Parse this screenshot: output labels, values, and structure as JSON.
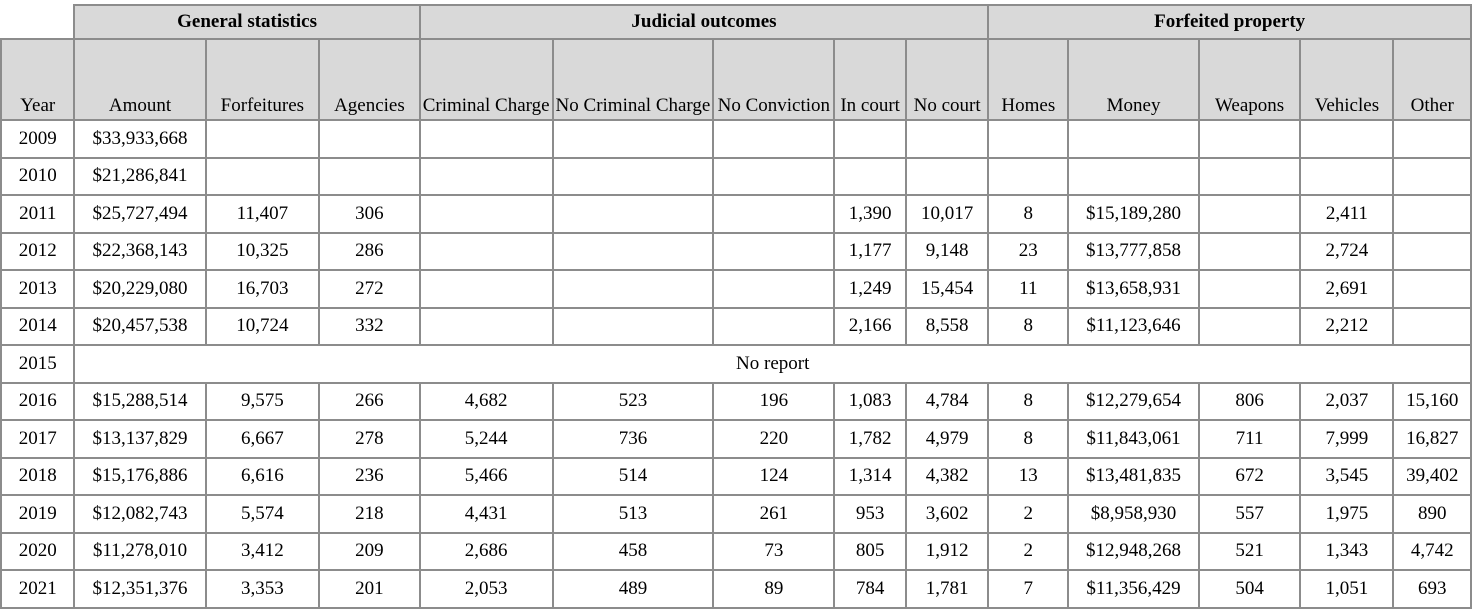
{
  "groups": [
    {
      "label": "General statistics",
      "span": 3
    },
    {
      "label": "Judicial outcomes",
      "span": 5
    },
    {
      "label": "Forfeited property",
      "span": 5
    }
  ],
  "columns": [
    "Year",
    "Amount",
    "Forfeitures",
    "Agencies",
    "Criminal Charge",
    "No Criminal Charge",
    "No Conviction",
    "In court",
    "No court",
    "Homes",
    "Money",
    "Weapons",
    "Vehicles",
    "Other"
  ],
  "rows": [
    [
      "2009",
      "$33,933,668",
      "",
      "",
      "",
      "",
      "",
      "",
      "",
      "",
      "",
      "",
      "",
      ""
    ],
    [
      "2010",
      "$21,286,841",
      "",
      "",
      "",
      "",
      "",
      "",
      "",
      "",
      "",
      "",
      "",
      ""
    ],
    [
      "2011",
      "$25,727,494",
      "11,407",
      "306",
      "",
      "",
      "",
      "1,390",
      "10,017",
      "8",
      "$15,189,280",
      "",
      "2,411",
      ""
    ],
    [
      "2012",
      "$22,368,143",
      "10,325",
      "286",
      "",
      "",
      "",
      "1,177",
      "9,148",
      "23",
      "$13,777,858",
      "",
      "2,724",
      ""
    ],
    [
      "2013",
      "$20,229,080",
      "16,703",
      "272",
      "",
      "",
      "",
      "1,249",
      "15,454",
      "11",
      "$13,658,931",
      "",
      "2,691",
      ""
    ],
    [
      "2014",
      "$20,457,538",
      "10,724",
      "332",
      "",
      "",
      "",
      "2,166",
      "8,558",
      "8",
      "$11,123,646",
      "",
      "2,212",
      ""
    ],
    [
      "2015",
      "No report"
    ],
    [
      "2016",
      "$15,288,514",
      "9,575",
      "266",
      "4,682",
      "523",
      "196",
      "1,083",
      "4,784",
      "8",
      "$12,279,654",
      "806",
      "2,037",
      "15,160"
    ],
    [
      "2017",
      "$13,137,829",
      "6,667",
      "278",
      "5,244",
      "736",
      "220",
      "1,782",
      "4,979",
      "8",
      "$11,843,061",
      "711",
      "7,999",
      "16,827"
    ],
    [
      "2018",
      "$15,176,886",
      "6,616",
      "236",
      "5,466",
      "514",
      "124",
      "1,314",
      "4,382",
      "13",
      "$13,481,835",
      "672",
      "3,545",
      "39,402"
    ],
    [
      "2019",
      "$12,082,743",
      "5,574",
      "218",
      "4,431",
      "513",
      "261",
      "953",
      "3,602",
      "2",
      "$8,958,930",
      "557",
      "1,975",
      "890"
    ],
    [
      "2020",
      "$11,278,010",
      "3,412",
      "209",
      "2,686",
      "458",
      "73",
      "805",
      "1,912",
      "2",
      "$12,948,268",
      "521",
      "1,343",
      "4,742"
    ],
    [
      "2021",
      "$12,351,376",
      "3,353",
      "201",
      "2,053",
      "489",
      "89",
      "784",
      "1,781",
      "7",
      "$11,356,429",
      "504",
      "1,051",
      "693"
    ]
  ]
}
